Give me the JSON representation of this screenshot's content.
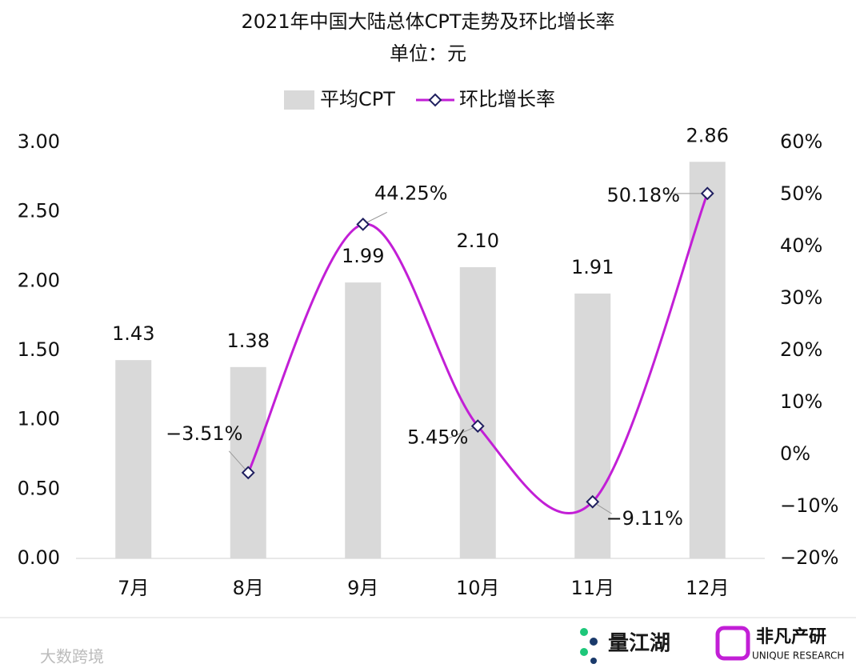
{
  "chart_data": {
    "type": "bar-line",
    "title": "2021年中国大陆总体CPT走势及环比增长率",
    "subtitle": "单位：元",
    "categories": [
      "7月",
      "8月",
      "9月",
      "10月",
      "11月",
      "12月"
    ],
    "series": [
      {
        "name": "平均CPT",
        "type": "bar",
        "color": "#d9d9d9",
        "axis": "y",
        "values": [
          1.43,
          1.38,
          1.99,
          2.1,
          1.91,
          2.86
        ],
        "value_labels": [
          "1.43",
          "1.38",
          "1.99",
          "2.10",
          "1.91",
          "2.86"
        ]
      },
      {
        "name": "环比增长率",
        "type": "line",
        "color": "#c21fd6",
        "marker_stroke": "#1f1f5f",
        "axis": "y2",
        "values": [
          null,
          -3.51,
          44.25,
          5.45,
          -9.11,
          50.18
        ],
        "value_labels": [
          null,
          "−3.51%",
          "44.25%",
          "5.45%",
          "−9.11%",
          "50.18%"
        ]
      }
    ],
    "ylim": [
      0,
      3
    ],
    "yticks": [
      {
        "value": 0,
        "label": "0.00"
      },
      {
        "value": 0.5,
        "label": "0.50"
      },
      {
        "value": 1,
        "label": "1.00"
      },
      {
        "value": 1.5,
        "label": "1.50"
      },
      {
        "value": 2,
        "label": "2.00"
      },
      {
        "value": 2.5,
        "label": "2.50"
      },
      {
        "value": 3,
        "label": "3.00"
      }
    ],
    "y2lim": [
      -20,
      60
    ],
    "y2ticks": [
      {
        "value": -20,
        "label": "−20%"
      },
      {
        "value": -10,
        "label": "−10%"
      },
      {
        "value": 0,
        "label": "0%"
      },
      {
        "value": 10,
        "label": "10%"
      },
      {
        "value": 20,
        "label": "20%"
      },
      {
        "value": 30,
        "label": "30%"
      },
      {
        "value": 40,
        "label": "40%"
      },
      {
        "value": 50,
        "label": "50%"
      },
      {
        "value": 60,
        "label": "60%"
      }
    ],
    "legend": "top",
    "grid": false
  },
  "footer": {
    "watermark": "大数跨境",
    "logo1": "量江湖",
    "logo2": "非凡产研",
    "logo2_sub": "UNIQUE RESEARCH"
  }
}
